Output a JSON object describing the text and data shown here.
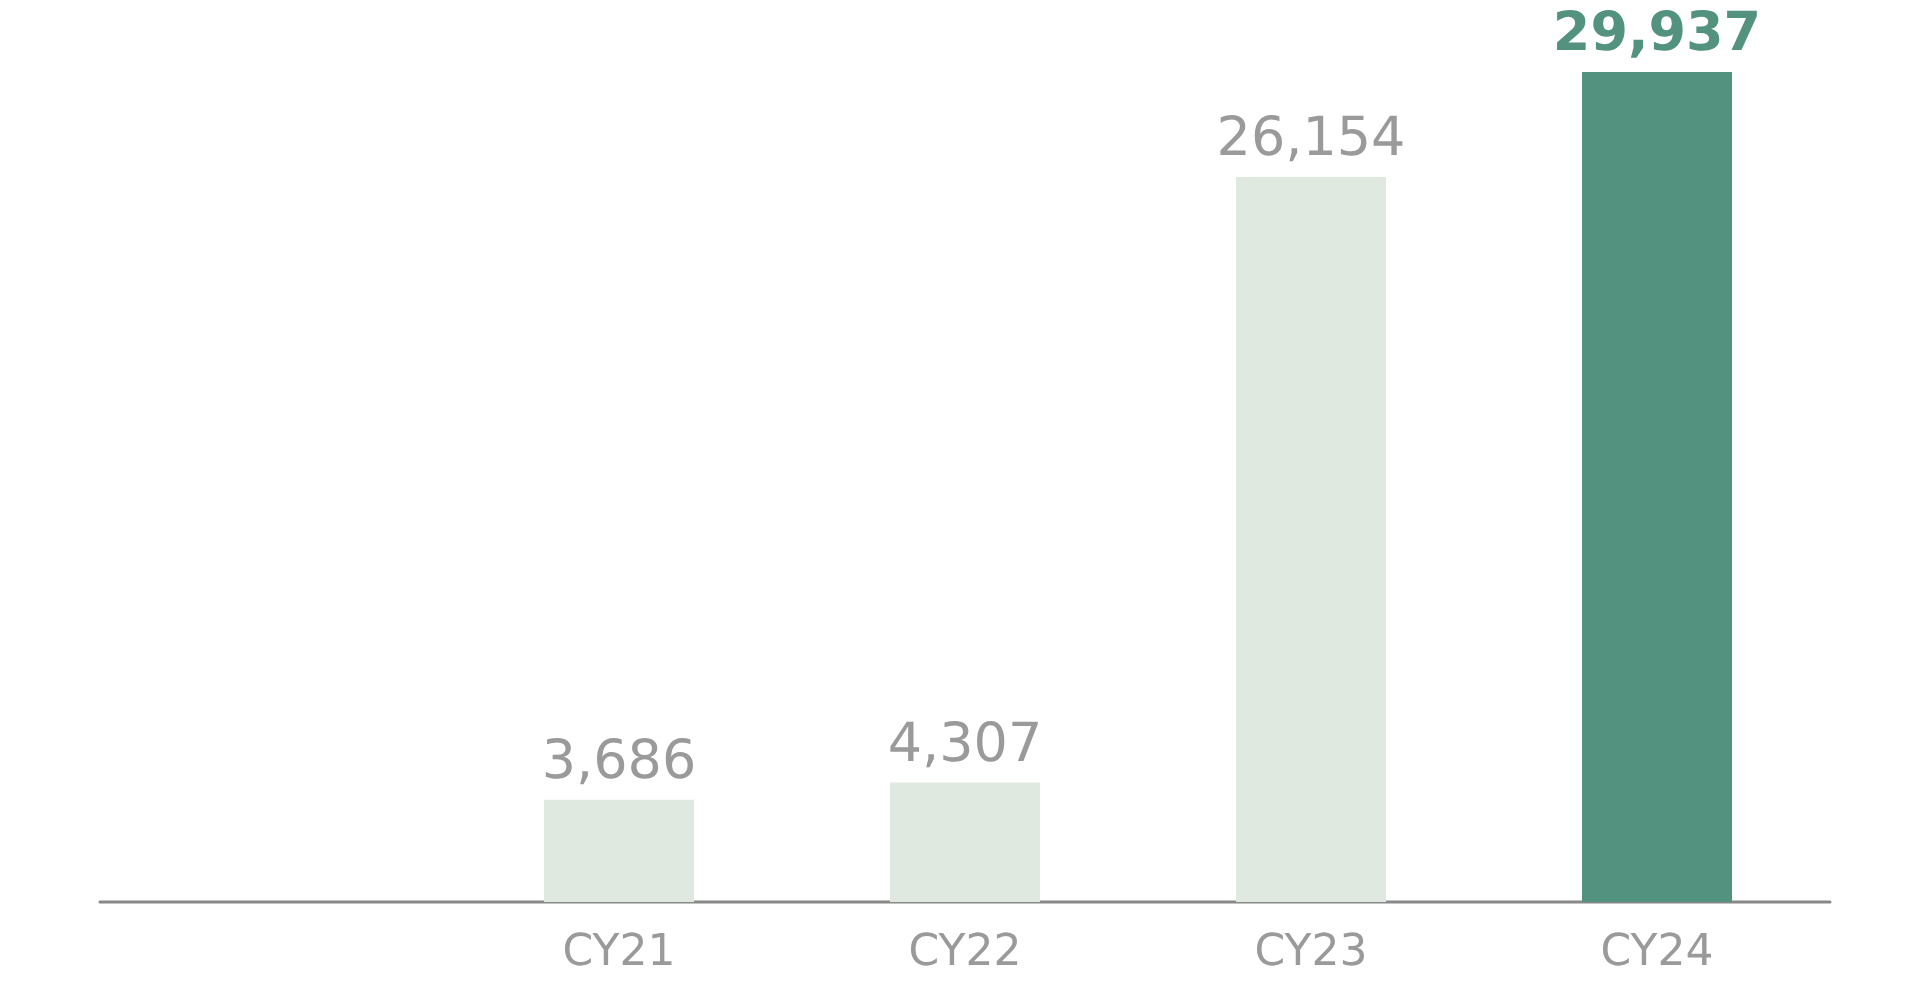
{
  "chart_data": {
    "type": "bar",
    "categories": [
      null,
      "CY21",
      "CY22",
      "CY23",
      "CY24"
    ],
    "values": [
      null,
      3686,
      4307,
      26154,
      29937
    ],
    "colors": [
      "#dfe9e0",
      "#dfe9e0",
      "#dfe9e0",
      "#dfe9e0",
      "#52927f"
    ],
    "value_labels": [
      null,
      "3,686",
      "4,307",
      "26,154",
      "29,937"
    ]
  }
}
